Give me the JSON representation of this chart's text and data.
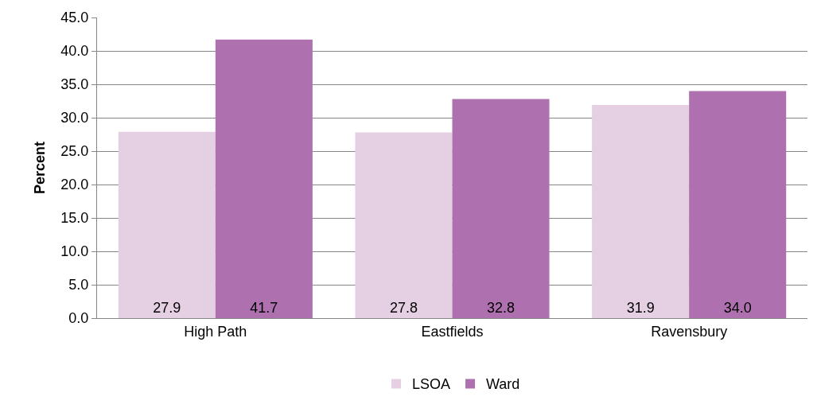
{
  "chart_data": {
    "type": "bar",
    "ylabel": "Percent",
    "categories": [
      "High Path",
      "Eastfields",
      "Ravensbury"
    ],
    "series": [
      {
        "name": "LSOA",
        "color": "#e4cfe3",
        "values": [
          27.9,
          27.8,
          31.9
        ],
        "value_labels": [
          "27.9",
          "27.8",
          "31.9"
        ]
      },
      {
        "name": "Ward",
        "color": "#ae70ae",
        "values": [
          41.7,
          32.8,
          34.0
        ],
        "value_labels": [
          "41.7",
          "32.8",
          "34.0"
        ]
      }
    ],
    "ylim": [
      0,
      45
    ],
    "yticks": [
      {
        "value": 0,
        "label": "0.0"
      },
      {
        "value": 5,
        "label": "5.0"
      },
      {
        "value": 10,
        "label": "10.0"
      },
      {
        "value": 15,
        "label": "15.0"
      },
      {
        "value": 20,
        "label": "20.0"
      },
      {
        "value": 25,
        "label": "25.0"
      },
      {
        "value": 30,
        "label": "30.0"
      },
      {
        "value": 35,
        "label": "35.0"
      },
      {
        "value": 40,
        "label": "40.0"
      },
      {
        "value": 45,
        "label": "45.0"
      }
    ],
    "grid": "y",
    "legend": "bottom"
  }
}
